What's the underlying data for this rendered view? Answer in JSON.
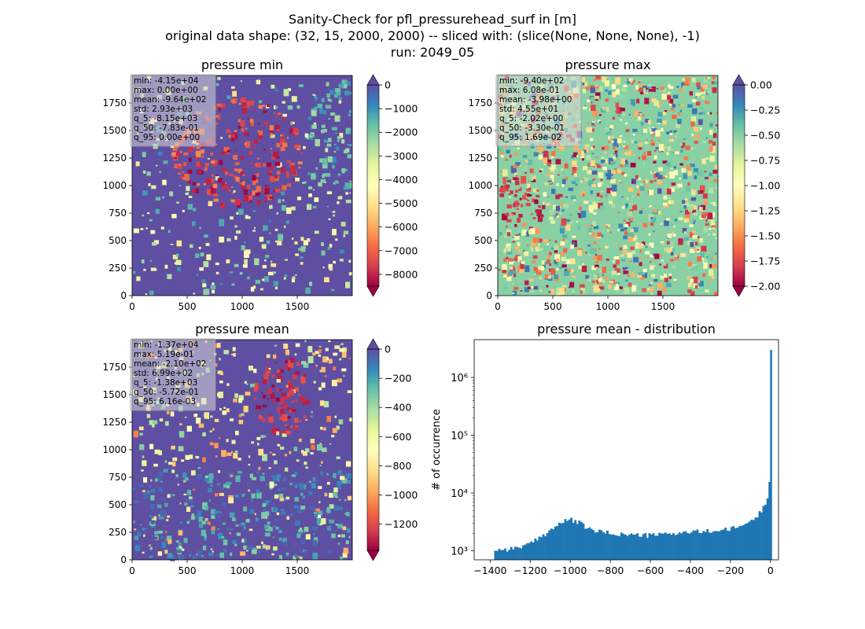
{
  "suptitle": {
    "line1": "Sanity-Check for pfl_pressurehead_surf in [m]",
    "line2": "original data shape: (32, 15, 2000, 2000) -- sliced with: (slice(None, None, None), -1)",
    "line3": "run: 2049_05"
  },
  "colormap": {
    "name": "Spectral",
    "stops": [
      "#9e0142",
      "#d53e4f",
      "#f46d43",
      "#fdae61",
      "#fee08b",
      "#ffffbf",
      "#e6f598",
      "#abdda4",
      "#66c2a5",
      "#3288bd",
      "#5e4fa2"
    ]
  },
  "chart_data": [
    {
      "type": "heatmap",
      "title": "pressure min",
      "xticks": [
        0,
        500,
        1000,
        1500
      ],
      "yticks": [
        0,
        250,
        500,
        750,
        1000,
        1250,
        1500,
        1750
      ],
      "xlim": [
        0,
        2000
      ],
      "ylim": [
        0,
        2000
      ],
      "colorbar": {
        "vmin": -8500,
        "vmax": 0,
        "ticks": [
          0,
          -1000,
          -2000,
          -3000,
          -4000,
          -5000,
          -6000,
          -7000,
          -8000
        ],
        "extend": "both"
      },
      "dominant_value": 0,
      "stats": [
        "min: -4.15e+04",
        "max: 0.00e+00",
        "mean: -9.64e+02",
        "std: 2.93e+03",
        "q_5: -8.15e+03",
        "q_50: -7.83e-01",
        "q_95: 0.00e+00"
      ]
    },
    {
      "type": "heatmap",
      "title": "pressure max",
      "xticks": [
        0,
        500,
        1000,
        1500
      ],
      "yticks": [
        0,
        250,
        500,
        750,
        1000,
        1250,
        1500,
        1750
      ],
      "xlim": [
        0,
        2000
      ],
      "ylim": [
        0,
        2000
      ],
      "colorbar": {
        "vmin": -2.0,
        "vmax": 0.0,
        "ticks": [
          "0.00",
          "-0.25",
          "-0.50",
          "-0.75",
          "-1.00",
          "-1.25",
          "-1.50",
          "-1.75",
          "-2.00"
        ],
        "extend": "both"
      },
      "dominant_value": -0.5,
      "stats": [
        "min: -9.40e+02",
        "max: 6.08e-01",
        "mean: -3.98e+00",
        "std: 4.55e+01",
        "q_5: -2.02e+00",
        "q_50: -3.30e-01",
        "q_95: 1.69e-02"
      ]
    },
    {
      "type": "heatmap",
      "title": "pressure mean",
      "xticks": [
        0,
        500,
        1000,
        1500
      ],
      "yticks": [
        0,
        250,
        500,
        750,
        1000,
        1250,
        1500,
        1750
      ],
      "xlim": [
        0,
        2000
      ],
      "ylim": [
        0,
        2000
      ],
      "colorbar": {
        "vmin": -1380,
        "vmax": 0,
        "ticks": [
          0,
          -200,
          -400,
          -600,
          -800,
          -1000,
          -1200
        ],
        "extend": "both"
      },
      "dominant_value": 0,
      "stats": [
        "min: -1.37e+04",
        "max: 5.19e-01",
        "mean: -2.10e+02",
        "std: 6.99e+02",
        "q_5: -1.38e+03",
        "q_50: -5.72e-01",
        "q_95: 6.16e-03"
      ]
    },
    {
      "type": "bar",
      "title": "pressure mean - distribution",
      "ylabel": "# of occurrence",
      "xlabel": "",
      "yscale": "log",
      "xticks": [
        -1400,
        -1200,
        -1000,
        -800,
        -600,
        -400,
        -200,
        0
      ],
      "yticks": [
        {
          "value": 1000,
          "label": "10³"
        },
        {
          "value": 10000,
          "label": "10⁴"
        },
        {
          "value": 100000,
          "label": "10⁵"
        },
        {
          "value": 1000000,
          "label": "10⁶"
        }
      ],
      "xlim": [
        -1480,
        40
      ],
      "ylim": [
        700,
        4500000
      ],
      "bar_color": "#1f77b4",
      "x": [
        -1380,
        -1300,
        -1200,
        -1100,
        -1050,
        -1000,
        -950,
        -900,
        -800,
        -700,
        -600,
        -500,
        -400,
        -300,
        -200,
        -150,
        -100,
        -60,
        -30,
        -15,
        -8,
        -4,
        0
      ],
      "y": [
        1050,
        1080,
        1300,
        2300,
        3000,
        3500,
        3000,
        2300,
        2000,
        1900,
        1850,
        2000,
        2100,
        2200,
        2350,
        2700,
        3200,
        4200,
        6000,
        9000,
        14000,
        18000,
        3000000
      ]
    }
  ]
}
